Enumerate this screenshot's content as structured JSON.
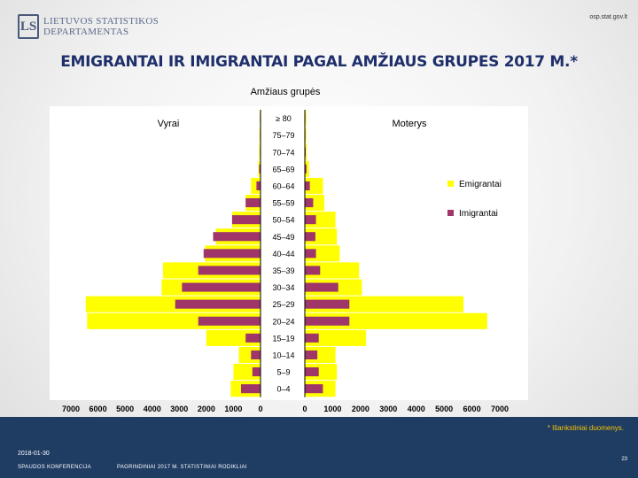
{
  "header": {
    "logo_line1": "LIETUVOS STATISTIKOS",
    "logo_line2": "DEPARTAMENTAS",
    "logo_letters": "LS",
    "site": "osp.stat.gov.lt",
    "title": "EMIGRANTAI IR IMIGRANTAI PAGAL AMŽIAUS GRUPES 2017 M.*"
  },
  "chart_data": {
    "type": "bar",
    "subtype": "population-pyramid",
    "title": "Amžiaus grupės",
    "left_label": "Vyrai",
    "right_label": "Moterys",
    "categories": [
      "≥ 80",
      "75–79",
      "70–74",
      "65–69",
      "60–64",
      "55–59",
      "50–54",
      "45–49",
      "40–44",
      "35–39",
      "30–34",
      "25–29",
      "20–24",
      "15–19",
      "10–14",
      "5–9",
      "0–4"
    ],
    "x_ticks": [
      "7000",
      "6000",
      "5000",
      "4000",
      "3000",
      "2000",
      "1000",
      "0"
    ],
    "x_range": [
      0,
      7000
    ],
    "series": [
      {
        "name": "Emigrantai",
        "color": "#ffff00",
        "men": [
          30,
          40,
          50,
          80,
          350,
          550,
          1050,
          1650,
          2050,
          3600,
          3650,
          6450,
          6400,
          2000,
          800,
          1000,
          1100
        ],
        "women": [
          50,
          50,
          70,
          150,
          650,
          700,
          1100,
          1150,
          1250,
          1950,
          2050,
          5700,
          6550,
          2200,
          1100,
          1150,
          1100
        ]
      },
      {
        "name": "Imigrantai",
        "color": "#a0356a",
        "men": [
          20,
          20,
          20,
          50,
          150,
          550,
          1050,
          1750,
          2100,
          2300,
          2900,
          3150,
          2300,
          550,
          350,
          300,
          720
        ],
        "women": [
          20,
          20,
          30,
          60,
          180,
          300,
          400,
          380,
          400,
          550,
          1200,
          1600,
          1600,
          500,
          450,
          500,
          650
        ]
      }
    ]
  },
  "footer": {
    "note": "* Išankstiniai duomenys.",
    "date": "2018-01-30",
    "conference": "SPAUDOS KONFERENCIJA",
    "subtitle": "PAGRINDINIAI 2017 M. STATISTINIAI RODIKLIAI",
    "page": "23"
  }
}
